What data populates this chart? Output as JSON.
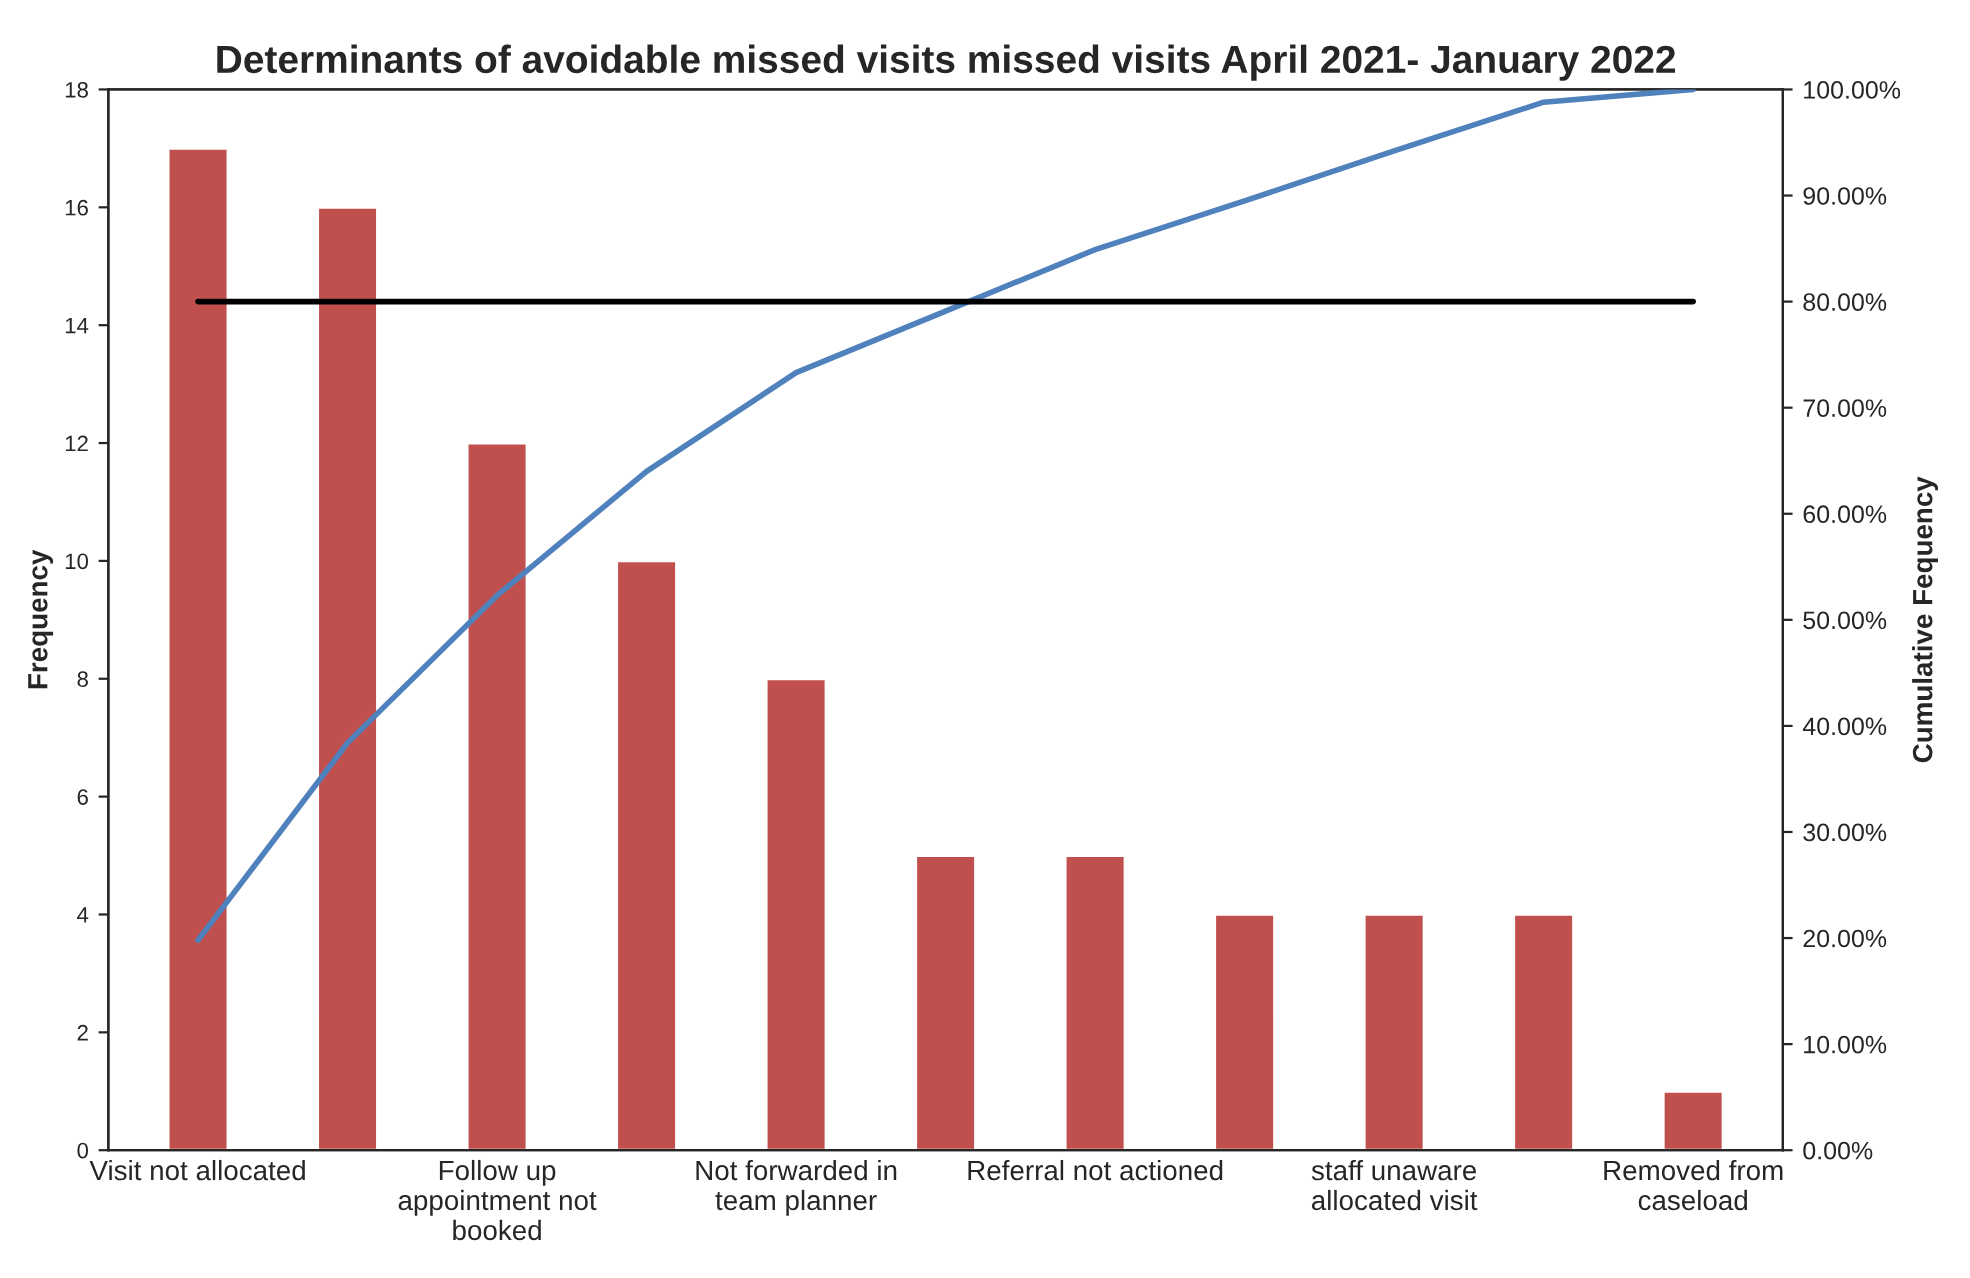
{
  "chart_data": {
    "type": "bar",
    "title": "Determinants of avoidable missed visits missed visits April 2021- January 2022",
    "categories": [
      "Visit not allocated",
      null,
      "Follow up\nappointment not\nbooked",
      null,
      "Not forwarded in\nteam planner",
      null,
      "Referral not actioned",
      null,
      "staff unaware\nallocated visit",
      null,
      "Removed from\ncaseload"
    ],
    "ylabel": "Frequency",
    "y2label": "Cumulative Fequency",
    "series": [
      {
        "color": "#c0504d",
        "values": [
          17,
          16,
          12,
          10,
          8,
          5,
          5,
          4,
          4,
          4,
          1
        ]
      },
      {
        "type": "line",
        "axis": "y2",
        "color": "#4f81bd",
        "values": [
          19.8,
          38.4,
          52.3,
          64.0,
          73.3,
          79.1,
          84.9,
          89.5,
          94.2,
          98.8,
          100
        ]
      }
    ],
    "ylim": [
      0,
      18
    ],
    "yticks": [
      0,
      2,
      4,
      6,
      8,
      10,
      12,
      14,
      16,
      18
    ],
    "y2lim": [
      0,
      100
    ],
    "y2ticks": [
      {
        "value": 0,
        "label": "0.00%"
      },
      {
        "value": 10,
        "label": "10.00%"
      },
      {
        "value": 20,
        "label": "20.00%"
      },
      {
        "value": 30,
        "label": "30.00%"
      },
      {
        "value": 40,
        "label": "40.00%"
      },
      {
        "value": 50,
        "label": "50.00%"
      },
      {
        "value": 60,
        "label": "60.00%"
      },
      {
        "value": 70,
        "label": "70.00%"
      },
      {
        "value": 80,
        "label": "80.00%"
      },
      {
        "value": 90,
        "label": "90.00%"
      },
      {
        "value": 100,
        "label": "100.00%"
      }
    ],
    "ref_lines": [
      {
        "axis": "y2",
        "value": 80,
        "color": "#000000"
      }
    ],
    "grid": false,
    "legend": false
  }
}
